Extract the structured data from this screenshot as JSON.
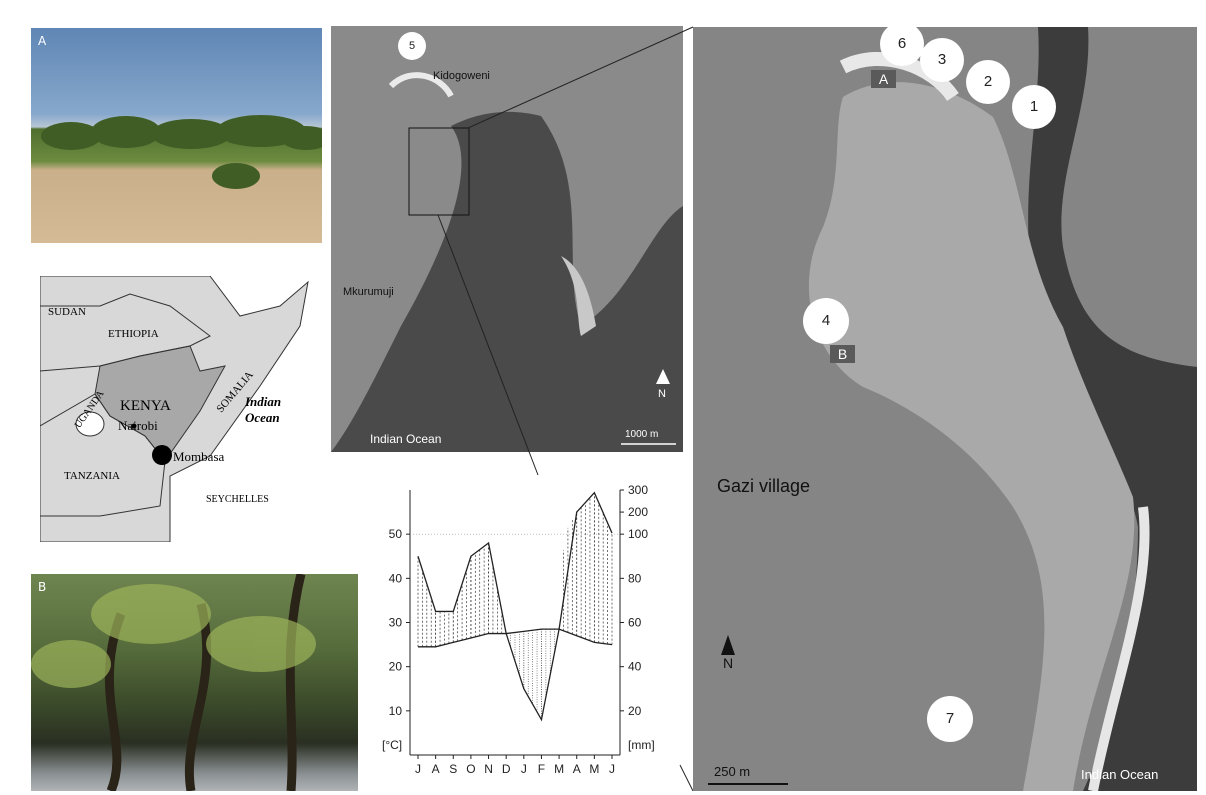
{
  "photo_a": {
    "letter": "A"
  },
  "photo_b": {
    "letter": "B"
  },
  "kenya_map": {
    "countries": [
      "SUDAN",
      "ETHIOPIA",
      "SOMALIA",
      "UGANDA",
      "KENYA",
      "TANZANIA",
      "SEYCHELLES"
    ],
    "cities": [
      "Nairobi",
      "Mombasa"
    ],
    "ocean": "Indian Ocean",
    "ocean_line1": "Indian",
    "ocean_line2": "Ocean"
  },
  "mid_map": {
    "site": "5",
    "places": [
      "Kidogoweni",
      "Mkurumuji"
    ],
    "ocean": "Indian Ocean",
    "north": "N",
    "scale": "1000 m"
  },
  "right_map": {
    "sites": [
      "6",
      "3",
      "2",
      "1",
      "4",
      "7"
    ],
    "plots": [
      "A",
      "B"
    ],
    "village": "Gazi village",
    "north": "N",
    "scale": "250 m",
    "ocean": "Indian Ocean"
  },
  "chart_data": {
    "type": "line",
    "title": "",
    "x": [
      "J",
      "A",
      "S",
      "O",
      "N",
      "D",
      "J",
      "F",
      "M",
      "A",
      "M",
      "J"
    ],
    "left_axis": {
      "unit": "[°C]",
      "ticks": [
        10,
        20,
        30,
        40,
        50
      ]
    },
    "right_axis": {
      "unit": "[mm]",
      "ticks": [
        20,
        40,
        60,
        80,
        100,
        200,
        300
      ]
    },
    "series": [
      {
        "values": [
          24.5,
          24.5,
          25.5,
          26.5,
          27.5,
          27.5,
          28,
          28.5,
          28.5,
          27,
          25.5,
          25
        ]
      },
      {
        "values": [
          90,
          65,
          65,
          90,
          96,
          55,
          30,
          16,
          57,
          200,
          288,
          105
        ]
      }
    ]
  },
  "colors": {
    "land": "#d8d8d8",
    "kenya": "#a8a8a8",
    "temp_line": "#222222",
    "precip_line": "#222222"
  }
}
